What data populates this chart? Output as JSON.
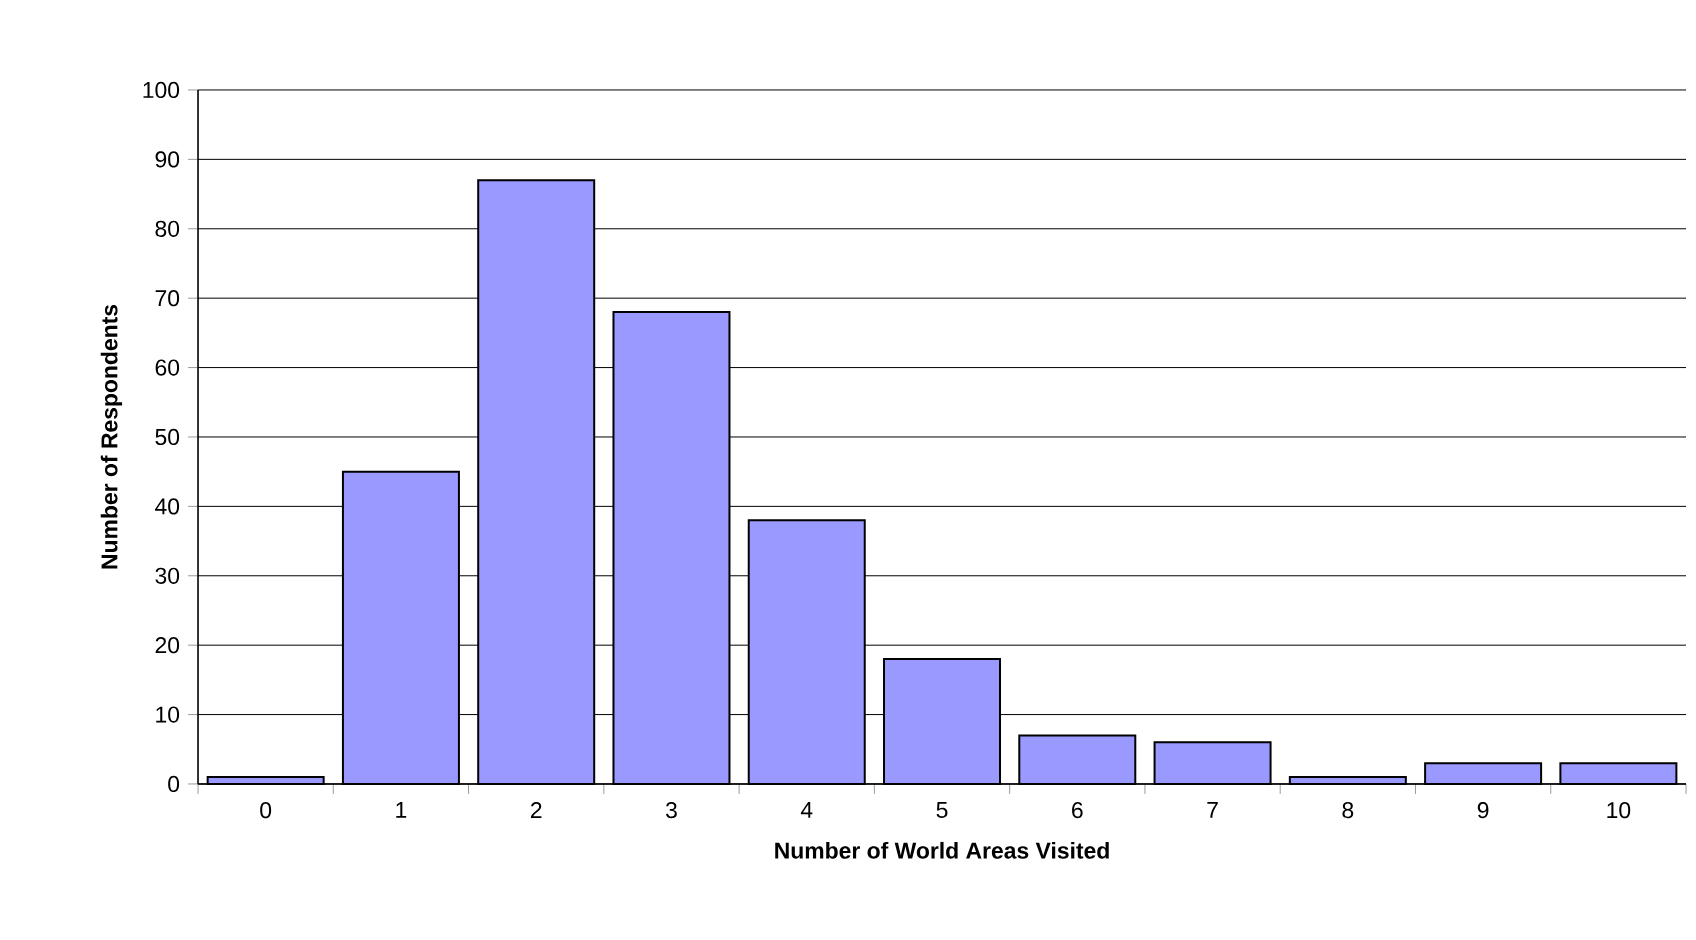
{
  "chart_data": {
    "type": "bar",
    "xlabel": "Number of World Areas Visited",
    "ylabel": "Number of Respondents",
    "categories": [
      "0",
      "1",
      "2",
      "3",
      "4",
      "5",
      "6",
      "7",
      "8",
      "9",
      "10"
    ],
    "values": [
      1,
      45,
      87,
      68,
      38,
      18,
      7,
      6,
      1,
      3,
      3
    ],
    "color": "#9999ff",
    "ylim": [
      0,
      100
    ],
    "yticks": [
      0,
      10,
      20,
      30,
      40,
      50,
      60,
      70,
      80,
      90,
      100
    ],
    "grid": "y"
  }
}
